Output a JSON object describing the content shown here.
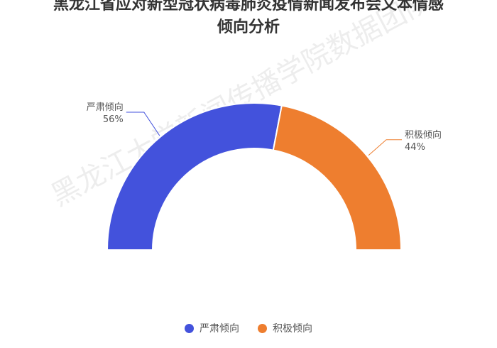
{
  "chart_data": {
    "type": "pie",
    "variant": "half-donut",
    "title_line1": "黑龙江省应对新型冠状病毒肺炎疫情新闻发布会文本情感",
    "title_line2": "倾向分析",
    "categories": [
      "严肃倾向",
      "积极倾向"
    ],
    "values": [
      56,
      44
    ],
    "labels": [
      "56%",
      "44%"
    ],
    "colors": [
      "#4352dc",
      "#ee7e2f"
    ],
    "legend_position": "bottom",
    "watermark": "黑龙江大学新闻传播学院数据团队"
  }
}
